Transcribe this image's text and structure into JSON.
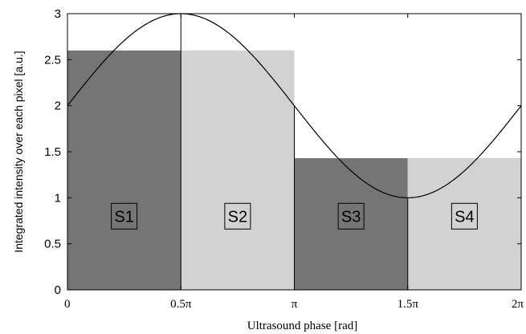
{
  "chart_data": {
    "type": "bar",
    "xlabel": "Ultrasound phase [rad]",
    "ylabel": "Integrated intensity over each pixel [a.u.]",
    "xlim": [
      0,
      6.2832
    ],
    "ylim": [
      0,
      3
    ],
    "x_ticks": [
      {
        "value": 0,
        "label": "0"
      },
      {
        "value": 1.5708,
        "label": "0.5π"
      },
      {
        "value": 3.1416,
        "label": "π"
      },
      {
        "value": 4.7124,
        "label": "1.5π"
      },
      {
        "value": 6.2832,
        "label": "2π"
      }
    ],
    "y_ticks": [
      {
        "value": 0,
        "label": "0"
      },
      {
        "value": 0.5,
        "label": "0.5"
      },
      {
        "value": 1,
        "label": "1"
      },
      {
        "value": 1.5,
        "label": "1.5"
      },
      {
        "value": 2,
        "label": "2"
      },
      {
        "value": 2.5,
        "label": "2.5"
      },
      {
        "value": 3,
        "label": "3"
      }
    ],
    "bars": [
      {
        "label": "S1",
        "x0": 0,
        "x1": 1.5708,
        "value": 2.6,
        "color": "#757575"
      },
      {
        "label": "S2",
        "x0": 1.5708,
        "x1": 3.1416,
        "value": 2.6,
        "color": "#d2d2d2"
      },
      {
        "label": "S3",
        "x0": 3.1416,
        "x1": 4.7124,
        "value": 1.43,
        "color": "#757575"
      },
      {
        "label": "S4",
        "x0": 4.7124,
        "x1": 6.2832,
        "value": 1.43,
        "color": "#d2d2d2"
      }
    ],
    "curve": {
      "function": "2 + sin(x)",
      "x_range": [
        0,
        6.2832
      ]
    },
    "grid": false
  }
}
